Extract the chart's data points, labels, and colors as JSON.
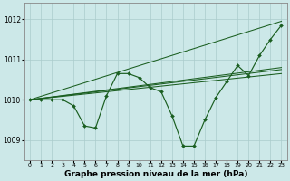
{
  "background_color": "#cce8e8",
  "grid_color": "#aacccc",
  "line_color": "#1a5e20",
  "marker": "D",
  "marker_size": 2.0,
  "xlabel": "Graphe pression niveau de la mer (hPa)",
  "xlabel_fontsize": 6.5,
  "ylabel_ticks": [
    1009,
    1010,
    1011,
    1012
  ],
  "xticks": [
    0,
    1,
    2,
    3,
    4,
    5,
    6,
    7,
    8,
    9,
    10,
    11,
    12,
    13,
    14,
    15,
    16,
    17,
    18,
    19,
    20,
    21,
    22,
    23
  ],
  "xlim": [
    -0.5,
    23.5
  ],
  "ylim": [
    1008.5,
    1012.4
  ],
  "main_series": [
    1010.0,
    1010.0,
    1010.0,
    1010.0,
    1009.85,
    1009.35,
    1009.3,
    1010.1,
    1010.65,
    1010.65,
    1010.55,
    1010.3,
    1010.2,
    1009.6,
    1008.85,
    1008.85,
    1009.5,
    1010.05,
    1010.45,
    1010.85,
    1010.6,
    1011.1,
    1011.5,
    1011.85
  ],
  "straight_lines": [
    [
      1010.0,
      1010.65
    ],
    [
      1010.0,
      1010.75
    ],
    [
      1010.0,
      1010.8
    ],
    [
      1010.0,
      1011.95
    ]
  ]
}
